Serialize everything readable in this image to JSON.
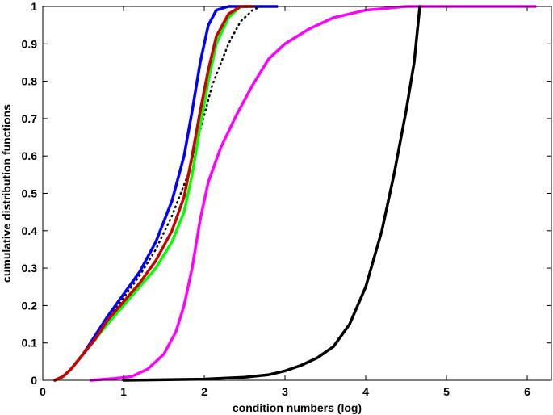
{
  "chart_data": {
    "type": "line",
    "xlabel": "condition numbers (log)",
    "ylabel": "cumulative distribution functions",
    "xlim": [
      0,
      6.3
    ],
    "ylim": [
      0,
      1
    ],
    "xticks": [
      0,
      1,
      2,
      3,
      4,
      5,
      6
    ],
    "yticks": [
      0,
      0.1,
      0.2,
      0.3,
      0.4,
      0.5,
      0.6,
      0.7,
      0.8,
      0.9,
      1
    ],
    "grid": false,
    "legend": "none",
    "series": [
      {
        "color": "#0000ff",
        "style": "solid",
        "points": [
          [
            0.15,
            0
          ],
          [
            0.25,
            0.01
          ],
          [
            0.35,
            0.03
          ],
          [
            0.5,
            0.07
          ],
          [
            0.65,
            0.12
          ],
          [
            0.8,
            0.17
          ],
          [
            1.0,
            0.23
          ],
          [
            1.2,
            0.29
          ],
          [
            1.4,
            0.37
          ],
          [
            1.6,
            0.48
          ],
          [
            1.75,
            0.6
          ],
          [
            1.85,
            0.72
          ],
          [
            1.95,
            0.85
          ],
          [
            2.05,
            0.95
          ],
          [
            2.15,
            0.99
          ],
          [
            2.3,
            1.0
          ],
          [
            2.9,
            1.0
          ]
        ]
      },
      {
        "color": "#000000",
        "style": "dotted",
        "points": [
          [
            0.15,
            0
          ],
          [
            0.25,
            0.01
          ],
          [
            0.35,
            0.03
          ],
          [
            0.5,
            0.07
          ],
          [
            0.65,
            0.11
          ],
          [
            0.8,
            0.16
          ],
          [
            1.0,
            0.22
          ],
          [
            1.2,
            0.28
          ],
          [
            1.4,
            0.35
          ],
          [
            1.6,
            0.44
          ],
          [
            1.8,
            0.55
          ],
          [
            1.95,
            0.67
          ],
          [
            2.1,
            0.79
          ],
          [
            2.3,
            0.9
          ],
          [
            2.45,
            0.96
          ],
          [
            2.6,
            0.99
          ],
          [
            2.7,
            1.0
          ]
        ]
      },
      {
        "color": "#00ff00",
        "style": "solid",
        "points": [
          [
            0.15,
            0
          ],
          [
            0.25,
            0.01
          ],
          [
            0.35,
            0.03
          ],
          [
            0.5,
            0.07
          ],
          [
            0.65,
            0.11
          ],
          [
            0.8,
            0.15
          ],
          [
            1.0,
            0.2
          ],
          [
            1.2,
            0.25
          ],
          [
            1.4,
            0.3
          ],
          [
            1.6,
            0.37
          ],
          [
            1.75,
            0.45
          ],
          [
            1.85,
            0.55
          ],
          [
            1.95,
            0.68
          ],
          [
            2.05,
            0.8
          ],
          [
            2.15,
            0.9
          ],
          [
            2.3,
            0.97
          ],
          [
            2.45,
            1.0
          ],
          [
            2.6,
            1.0
          ]
        ]
      },
      {
        "color": "#cc0000",
        "style": "solid",
        "points": [
          [
            0.15,
            0
          ],
          [
            0.25,
            0.01
          ],
          [
            0.35,
            0.03
          ],
          [
            0.5,
            0.07
          ],
          [
            0.65,
            0.11
          ],
          [
            0.8,
            0.16
          ],
          [
            1.0,
            0.21
          ],
          [
            1.2,
            0.26
          ],
          [
            1.4,
            0.32
          ],
          [
            1.6,
            0.4
          ],
          [
            1.75,
            0.49
          ],
          [
            1.85,
            0.6
          ],
          [
            1.95,
            0.72
          ],
          [
            2.05,
            0.83
          ],
          [
            2.15,
            0.92
          ],
          [
            2.3,
            0.98
          ],
          [
            2.45,
            1.0
          ],
          [
            2.6,
            1.0
          ]
        ]
      },
      {
        "color": "#ff00ff",
        "style": "solid",
        "points": [
          [
            0.6,
            0
          ],
          [
            0.9,
            0.005
          ],
          [
            1.1,
            0.01
          ],
          [
            1.3,
            0.03
          ],
          [
            1.5,
            0.07
          ],
          [
            1.65,
            0.13
          ],
          [
            1.75,
            0.2
          ],
          [
            1.85,
            0.3
          ],
          [
            1.95,
            0.43
          ],
          [
            2.05,
            0.53
          ],
          [
            2.2,
            0.62
          ],
          [
            2.4,
            0.71
          ],
          [
            2.6,
            0.79
          ],
          [
            2.8,
            0.86
          ],
          [
            3.0,
            0.9
          ],
          [
            3.3,
            0.94
          ],
          [
            3.6,
            0.97
          ],
          [
            4.0,
            0.99
          ],
          [
            4.5,
            1.0
          ],
          [
            6.1,
            1.0
          ]
        ]
      },
      {
        "color": "#000000",
        "style": "solid",
        "points": [
          [
            1.0,
            0
          ],
          [
            2.0,
            0.003
          ],
          [
            2.5,
            0.008
          ],
          [
            2.8,
            0.015
          ],
          [
            3.0,
            0.025
          ],
          [
            3.2,
            0.04
          ],
          [
            3.4,
            0.06
          ],
          [
            3.6,
            0.09
          ],
          [
            3.8,
            0.15
          ],
          [
            4.0,
            0.25
          ],
          [
            4.2,
            0.4
          ],
          [
            4.35,
            0.55
          ],
          [
            4.5,
            0.72
          ],
          [
            4.6,
            0.85
          ],
          [
            4.67,
            1.0
          ]
        ]
      }
    ]
  }
}
